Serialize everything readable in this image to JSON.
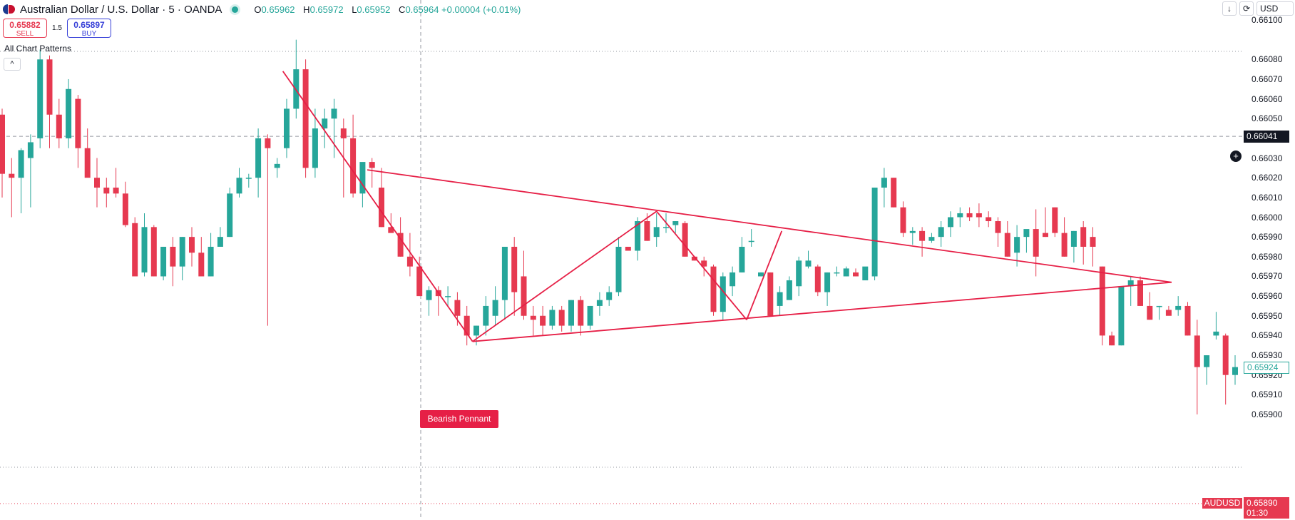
{
  "header": {
    "title": "Australian Dollar / U.S. Dollar · 5 · OANDA",
    "ohlc": [
      {
        "key": "O",
        "value": "0.65962"
      },
      {
        "key": "H",
        "value": "0.65972"
      },
      {
        "key": "L",
        "value": "0.65952"
      },
      {
        "key": "C",
        "value": "0.65964 +0.00004 (+0.01%)"
      }
    ]
  },
  "trade": {
    "sell_price": "0.65882",
    "sell_label": "SELL",
    "spread": "1.5",
    "buy_price": "0.65897",
    "buy_label": "BUY"
  },
  "indicator": {
    "label": "All Chart Patterns",
    "collapse_icon": "^"
  },
  "controls": {
    "download_icon": "↓",
    "sync_icon": "⟳",
    "currency": "USD"
  },
  "axis": {
    "ticks": [
      "0.66100",
      "0.66080",
      "0.66070",
      "0.66060",
      "0.66050",
      "0.66030",
      "0.66020",
      "0.66010",
      "0.66000",
      "0.65990",
      "0.65980",
      "0.65970",
      "0.65960",
      "0.65950",
      "0.65940",
      "0.65930",
      "0.65920",
      "0.65910",
      "0.65900"
    ],
    "crosshair_price": "0.66041",
    "last_price": "0.65924",
    "symbol": "AUDUSD",
    "close_price": "0.65890",
    "countdown": "01:30"
  },
  "pattern": {
    "label": "Bearish Pennant"
  },
  "colors": {
    "up": "#26a69a",
    "down": "#e63950",
    "pattern": "#e61f46",
    "crosshair": "#9598a1"
  },
  "chart_data": {
    "type": "candlestick",
    "symbol": "AUDUSD",
    "timeframe": "5",
    "candles_ohlc": [
      [
        0.66052,
        0.66055,
        0.6601,
        0.66022
      ],
      [
        0.66022,
        0.6603,
        0.66,
        0.6602
      ],
      [
        0.6602,
        0.66035,
        0.66002,
        0.66034
      ],
      [
        0.6603,
        0.66042,
        0.66005,
        0.66038
      ],
      [
        0.6604,
        0.66085,
        0.66035,
        0.6608
      ],
      [
        0.6608,
        0.66082,
        0.66035,
        0.66052
      ],
      [
        0.66052,
        0.6606,
        0.66035,
        0.6604
      ],
      [
        0.6604,
        0.6607,
        0.66035,
        0.66065
      ],
      [
        0.6606,
        0.66062,
        0.66025,
        0.66035
      ],
      [
        0.66035,
        0.66045,
        0.66025,
        0.6602
      ],
      [
        0.6602,
        0.6603,
        0.66005,
        0.66015
      ],
      [
        0.66015,
        0.6602,
        0.66005,
        0.66012
      ],
      [
        0.66015,
        0.66025,
        0.6601,
        0.66012
      ],
      [
        0.66012,
        0.66018,
        0.65995,
        0.65996
      ],
      [
        0.65997,
        0.66,
        0.65972,
        0.6597
      ],
      [
        0.65972,
        0.66002,
        0.6597,
        0.65995
      ],
      [
        0.65995,
        0.65996,
        0.6597,
        0.6597
      ],
      [
        0.6597,
        0.65985,
        0.65968,
        0.65985
      ],
      [
        0.65985,
        0.6599,
        0.65965,
        0.65975
      ],
      [
        0.65975,
        0.6599,
        0.65968,
        0.6599
      ],
      [
        0.6599,
        0.65995,
        0.65975,
        0.65982
      ],
      [
        0.65982,
        0.6599,
        0.65975,
        0.6597
      ],
      [
        0.6597,
        0.65992,
        0.6597,
        0.65985
      ],
      [
        0.65985,
        0.65995,
        0.65985,
        0.6599
      ],
      [
        0.6599,
        0.66015,
        0.6599,
        0.66012
      ],
      [
        0.66012,
        0.66025,
        0.6601,
        0.6602
      ],
      [
        0.6602,
        0.66022,
        0.66015,
        0.6602
      ],
      [
        0.6602,
        0.66045,
        0.6601,
        0.6604
      ],
      [
        0.6604,
        0.66042,
        0.65945,
        0.66035
      ],
      [
        0.66025,
        0.6603,
        0.6602,
        0.66027
      ],
      [
        0.66035,
        0.6606,
        0.6603,
        0.66055
      ],
      [
        0.66055,
        0.6609,
        0.6605,
        0.66075
      ],
      [
        0.66075,
        0.6608,
        0.6602,
        0.66025
      ],
      [
        0.66025,
        0.66055,
        0.6602,
        0.66045
      ],
      [
        0.66045,
        0.66055,
        0.66035,
        0.6605
      ],
      [
        0.6605,
        0.6606,
        0.6603,
        0.66055
      ],
      [
        0.66045,
        0.6605,
        0.6601,
        0.6604
      ],
      [
        0.6604,
        0.66052,
        0.6601,
        0.66012
      ],
      [
        0.66012,
        0.66015,
        0.66005,
        0.66028
      ],
      [
        0.66028,
        0.6603,
        0.66015,
        0.66025
      ],
      [
        0.66015,
        0.66025,
        0.65995,
        0.65995
      ],
      [
        0.65995,
        0.66002,
        0.65993,
        0.65992
      ],
      [
        0.65992,
        0.66,
        0.6598,
        0.6598
      ],
      [
        0.6598,
        0.65992,
        0.6597,
        0.65975
      ],
      [
        0.65975,
        0.6598,
        0.6596,
        0.6596
      ],
      [
        0.65958,
        0.65965,
        0.6595,
        0.65963
      ],
      [
        0.65963,
        0.65965,
        0.6595,
        0.6596
      ],
      [
        0.6596,
        0.65965,
        0.65955,
        0.6596
      ],
      [
        0.65958,
        0.65962,
        0.65945,
        0.6595
      ],
      [
        0.6595,
        0.65955,
        0.65935,
        0.6594
      ],
      [
        0.6594,
        0.65945,
        0.65935,
        0.65945
      ],
      [
        0.65945,
        0.6596,
        0.6594,
        0.65955
      ],
      [
        0.6595,
        0.65965,
        0.65945,
        0.65958
      ],
      [
        0.65958,
        0.65975,
        0.65948,
        0.65985
      ],
      [
        0.65985,
        0.6599,
        0.6595,
        0.65962
      ],
      [
        0.6597,
        0.65983,
        0.65948,
        0.6595
      ],
      [
        0.6595,
        0.65955,
        0.6594,
        0.65948
      ],
      [
        0.6595,
        0.65955,
        0.6594,
        0.65945
      ],
      [
        0.65945,
        0.65955,
        0.65943,
        0.65953
      ],
      [
        0.65953,
        0.65955,
        0.65942,
        0.65945
      ],
      [
        0.65945,
        0.65958,
        0.65942,
        0.65958
      ],
      [
        0.65958,
        0.6596,
        0.6594,
        0.65945
      ],
      [
        0.65945,
        0.65955,
        0.65943,
        0.65955
      ],
      [
        0.65955,
        0.65962,
        0.6595,
        0.65958
      ],
      [
        0.65958,
        0.65965,
        0.65955,
        0.65962
      ],
      [
        0.65962,
        0.6599,
        0.6596,
        0.65985
      ],
      [
        0.65985,
        0.65985,
        0.65983,
        0.65983
      ],
      [
        0.65983,
        0.66,
        0.65978,
        0.65998
      ],
      [
        0.65998,
        0.66002,
        0.65988,
        0.65988
      ],
      [
        0.6599,
        0.66002,
        0.65985,
        0.65995
      ],
      [
        0.65995,
        0.66002,
        0.65992,
        0.65995
      ],
      [
        0.65996,
        0.65998,
        0.65992,
        0.65998
      ],
      [
        0.65997,
        0.65998,
        0.6598,
        0.6598
      ],
      [
        0.6598,
        0.6598,
        0.65978,
        0.65978
      ],
      [
        0.65978,
        0.6598,
        0.6597,
        0.65975
      ],
      [
        0.65975,
        0.65976,
        0.6595,
        0.65952
      ],
      [
        0.65952,
        0.65972,
        0.65948,
        0.6597
      ],
      [
        0.65965,
        0.65975,
        0.6596,
        0.65972
      ],
      [
        0.65972,
        0.6599,
        0.65972,
        0.65985
      ],
      [
        0.65988,
        0.65994,
        0.65985,
        0.65988
      ],
      [
        0.6597,
        0.65972,
        0.6597,
        0.65972
      ],
      [
        0.65972,
        0.65972,
        0.6595,
        0.6595
      ],
      [
        0.65955,
        0.65965,
        0.6595,
        0.65962
      ],
      [
        0.65958,
        0.6597,
        0.65958,
        0.65968
      ],
      [
        0.65965,
        0.6598,
        0.6596,
        0.65978
      ],
      [
        0.65975,
        0.65983,
        0.65974,
        0.65978
      ],
      [
        0.65975,
        0.65976,
        0.6596,
        0.65962
      ],
      [
        0.65962,
        0.65972,
        0.65955,
        0.65972
      ],
      [
        0.65972,
        0.65975,
        0.6597,
        0.65972
      ],
      [
        0.6597,
        0.65975,
        0.6597,
        0.65974
      ],
      [
        0.65972,
        0.65974,
        0.6597,
        0.6597
      ],
      [
        0.65968,
        0.65974,
        0.65968,
        0.65975
      ],
      [
        0.6597,
        0.66015,
        0.65968,
        0.66015
      ],
      [
        0.66015,
        0.66025,
        0.66005,
        0.6602
      ],
      [
        0.6602,
        0.6602,
        0.66005,
        0.66005
      ],
      [
        0.66005,
        0.66008,
        0.6599,
        0.65992
      ],
      [
        0.65992,
        0.65995,
        0.65986,
        0.65993
      ],
      [
        0.65993,
        0.65995,
        0.6598,
        0.65988
      ],
      [
        0.65988,
        0.65992,
        0.65987,
        0.6599
      ],
      [
        0.6599,
        0.65998,
        0.65985,
        0.65995
      ],
      [
        0.65995,
        0.66003,
        0.6599,
        0.66
      ],
      [
        0.66,
        0.66005,
        0.65995,
        0.66002
      ],
      [
        0.66002,
        0.66005,
        0.65998,
        0.66
      ],
      [
        0.66002,
        0.66007,
        0.65995,
        0.66
      ],
      [
        0.66,
        0.66003,
        0.65995,
        0.65998
      ],
      [
        0.65998,
        0.66,
        0.65985,
        0.65992
      ],
      [
        0.65992,
        0.65998,
        0.6598,
        0.6598
      ],
      [
        0.65982,
        0.65996,
        0.65975,
        0.6599
      ],
      [
        0.6599,
        0.65992,
        0.65982,
        0.65994
      ],
      [
        0.65994,
        0.66004,
        0.6597,
        0.6598
      ],
      [
        0.65992,
        0.66005,
        0.6599,
        0.6599
      ],
      [
        0.66005,
        0.66005,
        0.6599,
        0.65992
      ],
      [
        0.65992,
        0.66,
        0.6598,
        0.6598
      ],
      [
        0.65985,
        0.65993,
        0.65977,
        0.65993
      ],
      [
        0.65995,
        0.65998,
        0.65976,
        0.65985
      ],
      [
        0.6599,
        0.65995,
        0.65975,
        0.65985
      ],
      [
        0.65975,
        0.65975,
        0.65935,
        0.6594
      ],
      [
        0.6594,
        0.65942,
        0.65935,
        0.65935
      ],
      [
        0.65935,
        0.6595,
        0.65935,
        0.65965
      ],
      [
        0.65965,
        0.6597,
        0.65955,
        0.65968
      ],
      [
        0.65968,
        0.6597,
        0.65955,
        0.65955
      ],
      [
        0.65955,
        0.65962,
        0.65948,
        0.65948
      ],
      [
        0.65955,
        0.65955,
        0.65948,
        0.65955
      ],
      [
        0.65953,
        0.65955,
        0.65952,
        0.6595
      ],
      [
        0.65953,
        0.6596,
        0.6595,
        0.65955
      ],
      [
        0.65955,
        0.65957,
        0.6594,
        0.6594
      ],
      [
        0.6594,
        0.65948,
        0.659,
        0.65924
      ],
      [
        0.65924,
        0.6593,
        0.65915,
        0.6593
      ],
      [
        0.6594,
        0.65952,
        0.65938,
        0.65942
      ],
      [
        0.6594,
        0.65941,
        0.65905,
        0.6592
      ],
      [
        0.6592,
        0.6593,
        0.65915,
        0.65924
      ]
    ],
    "pattern_label": "Bearish Pennant",
    "crosshair_price": 0.66041,
    "last_price": 0.65924,
    "ylim": [
      0.65887,
      0.66102
    ],
    "grid": false
  }
}
